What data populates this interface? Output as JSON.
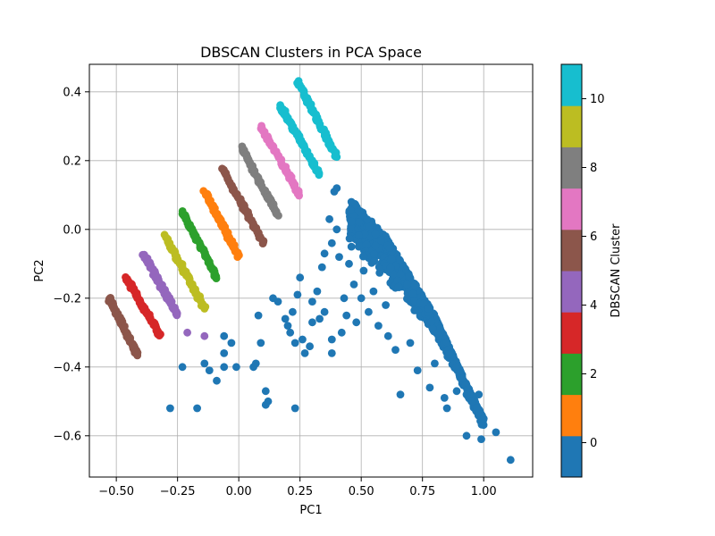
{
  "chart_data": {
    "type": "scatter",
    "title": "DBSCAN Clusters in PCA Space",
    "xlabel": "PC1",
    "ylabel": "PC2",
    "xlim": [
      -0.61,
      1.2
    ],
    "ylim": [
      -0.72,
      0.48
    ],
    "x_ticks": [
      "−0.50",
      "−0.25",
      "0.00",
      "0.25",
      "0.50",
      "0.75",
      "1.00"
    ],
    "y_ticks": [
      "−0.6",
      "−0.4",
      "−0.2",
      "0.0",
      "0.2",
      "0.4"
    ],
    "grid": true,
    "colorbar": {
      "label": "DBSCAN Cluster",
      "range": [
        -1,
        11
      ],
      "tick_values": [
        0,
        2,
        4,
        6,
        8,
        10
      ],
      "tick_labels": [
        "0",
        "2",
        "4",
        "6",
        "8",
        "10"
      ],
      "colors": [
        "#1f77b4",
        "#ff7f0e",
        "#2ca02c",
        "#d62728",
        "#9467bd",
        "#8c564b",
        "#e377c2",
        "#7f7f7f",
        "#bcbd22",
        "#17becf"
      ]
    },
    "cluster_colors": {
      "0": "#1f77b4",
      "1": "#ff7f0e",
      "2": "#2ca02c",
      "3": "#d62728",
      "4": "#9467bd",
      "5": "#8c564b",
      "6": "#8c564b",
      "7": "#e377c2",
      "8": "#7f7f7f",
      "9": "#bcbd22",
      "10": "#17becf",
      "11": "#17becf"
    },
    "bands": [
      {
        "cluster": 6,
        "x": [
          -0.53,
          -0.41
        ],
        "y": [
          -0.2,
          -0.37
        ]
      },
      {
        "cluster": 3,
        "x": [
          -0.46,
          -0.32
        ],
        "y": [
          -0.14,
          -0.31
        ]
      },
      {
        "cluster": 4,
        "x": [
          -0.39,
          -0.25
        ],
        "y": [
          -0.07,
          -0.25
        ]
      },
      {
        "cluster": 9,
        "x": [
          -0.3,
          -0.14
        ],
        "y": [
          -0.02,
          -0.23
        ]
      },
      {
        "cluster": 2,
        "x": [
          -0.23,
          -0.09
        ],
        "y": [
          0.05,
          -0.14
        ]
      },
      {
        "cluster": 1,
        "x": [
          -0.14,
          0.0
        ],
        "y": [
          0.11,
          -0.08
        ]
      },
      {
        "cluster": 6,
        "x": [
          -0.07,
          0.1
        ],
        "y": [
          0.18,
          -0.04
        ]
      },
      {
        "cluster": 8,
        "x": [
          0.01,
          0.16
        ],
        "y": [
          0.24,
          0.04
        ]
      },
      {
        "cluster": 7,
        "x": [
          0.09,
          0.25
        ],
        "y": [
          0.3,
          0.1
        ]
      },
      {
        "cluster": 10,
        "x": [
          0.17,
          0.33
        ],
        "y": [
          0.36,
          0.16
        ]
      },
      {
        "cluster": 11,
        "x": [
          0.24,
          0.4
        ],
        "y": [
          0.43,
          0.21
        ]
      }
    ],
    "cluster0_triangle": {
      "cluster": 0,
      "x": [
        0.45,
        1.12
      ],
      "upper_edge": [
        [
          0.4,
          0.13
        ],
        [
          0.6,
          -0.02
        ],
        [
          0.8,
          -0.25
        ],
        [
          0.93,
          -0.45
        ],
        [
          1.0,
          -0.55
        ]
      ],
      "lower_edge": [
        [
          0.4,
          -0.08
        ],
        [
          0.6,
          -0.22
        ],
        [
          0.8,
          -0.33
        ],
        [
          0.9,
          -0.45
        ],
        [
          1.0,
          -0.6
        ]
      ]
    },
    "points": [
      {
        "cluster": 4,
        "x": -0.21,
        "y": -0.3
      },
      {
        "cluster": 4,
        "x": -0.14,
        "y": -0.31
      },
      {
        "cluster": 0,
        "x": -0.28,
        "y": -0.52
      },
      {
        "cluster": 0,
        "x": -0.17,
        "y": -0.52
      },
      {
        "cluster": 0,
        "x": -0.23,
        "y": -0.4
      },
      {
        "cluster": 0,
        "x": -0.14,
        "y": -0.39
      },
      {
        "cluster": 0,
        "x": -0.12,
        "y": -0.41
      },
      {
        "cluster": 0,
        "x": -0.09,
        "y": -0.44
      },
      {
        "cluster": 0,
        "x": -0.06,
        "y": -0.36
      },
      {
        "cluster": 0,
        "x": -0.03,
        "y": -0.33
      },
      {
        "cluster": 0,
        "x": -0.06,
        "y": -0.31
      },
      {
        "cluster": 0,
        "x": -0.06,
        "y": -0.4
      },
      {
        "cluster": 0,
        "x": -0.01,
        "y": -0.4
      },
      {
        "cluster": 0,
        "x": 0.06,
        "y": -0.4
      },
      {
        "cluster": 0,
        "x": 0.07,
        "y": -0.39
      },
      {
        "cluster": 0,
        "x": 0.09,
        "y": -0.33
      },
      {
        "cluster": 0,
        "x": 0.08,
        "y": -0.25
      },
      {
        "cluster": 0,
        "x": 0.11,
        "y": -0.47
      },
      {
        "cluster": 0,
        "x": 0.11,
        "y": -0.51
      },
      {
        "cluster": 0,
        "x": 0.12,
        "y": -0.5
      },
      {
        "cluster": 0,
        "x": 0.23,
        "y": -0.52
      },
      {
        "cluster": 0,
        "x": 0.14,
        "y": -0.2
      },
      {
        "cluster": 0,
        "x": 0.16,
        "y": -0.21
      },
      {
        "cluster": 0,
        "x": 0.19,
        "y": -0.26
      },
      {
        "cluster": 0,
        "x": 0.2,
        "y": -0.28
      },
      {
        "cluster": 0,
        "x": 0.21,
        "y": -0.3
      },
      {
        "cluster": 0,
        "x": 0.22,
        "y": -0.24
      },
      {
        "cluster": 0,
        "x": 0.23,
        "y": -0.33
      },
      {
        "cluster": 0,
        "x": 0.24,
        "y": -0.19
      },
      {
        "cluster": 0,
        "x": 0.25,
        "y": -0.14
      },
      {
        "cluster": 0,
        "x": 0.26,
        "y": -0.32
      },
      {
        "cluster": 0,
        "x": 0.27,
        "y": -0.36
      },
      {
        "cluster": 0,
        "x": 0.29,
        "y": -0.34
      },
      {
        "cluster": 0,
        "x": 0.3,
        "y": -0.27
      },
      {
        "cluster": 0,
        "x": 0.3,
        "y": -0.21
      },
      {
        "cluster": 0,
        "x": 0.32,
        "y": -0.18
      },
      {
        "cluster": 0,
        "x": 0.33,
        "y": -0.26
      },
      {
        "cluster": 0,
        "x": 0.34,
        "y": -0.11
      },
      {
        "cluster": 0,
        "x": 0.35,
        "y": -0.07
      },
      {
        "cluster": 0,
        "x": 0.35,
        "y": -0.24
      },
      {
        "cluster": 0,
        "x": 0.37,
        "y": 0.03
      },
      {
        "cluster": 0,
        "x": 0.38,
        "y": -0.04
      },
      {
        "cluster": 0,
        "x": 0.38,
        "y": -0.32
      },
      {
        "cluster": 0,
        "x": 0.38,
        "y": -0.36
      },
      {
        "cluster": 0,
        "x": 0.39,
        "y": 0.11
      },
      {
        "cluster": 0,
        "x": 0.4,
        "y": 0.12
      },
      {
        "cluster": 0,
        "x": 0.4,
        "y": 0.0
      },
      {
        "cluster": 0,
        "x": 0.41,
        "y": -0.08
      },
      {
        "cluster": 0,
        "x": 0.42,
        "y": -0.3
      },
      {
        "cluster": 0,
        "x": 0.43,
        "y": -0.2
      },
      {
        "cluster": 0,
        "x": 0.44,
        "y": -0.25
      },
      {
        "cluster": 0,
        "x": 0.45,
        "y": -0.1
      },
      {
        "cluster": 0,
        "x": 0.46,
        "y": -0.05
      },
      {
        "cluster": 0,
        "x": 0.46,
        "y": 0.08
      },
      {
        "cluster": 0,
        "x": 0.47,
        "y": -0.16
      },
      {
        "cluster": 0,
        "x": 0.48,
        "y": -0.27
      },
      {
        "cluster": 0,
        "x": 0.5,
        "y": -0.2
      },
      {
        "cluster": 0,
        "x": 0.51,
        "y": -0.12
      },
      {
        "cluster": 0,
        "x": 0.53,
        "y": -0.24
      },
      {
        "cluster": 0,
        "x": 0.55,
        "y": -0.18
      },
      {
        "cluster": 0,
        "x": 0.57,
        "y": -0.28
      },
      {
        "cluster": 0,
        "x": 0.6,
        "y": -0.22
      },
      {
        "cluster": 0,
        "x": 0.61,
        "y": -0.31
      },
      {
        "cluster": 0,
        "x": 0.64,
        "y": -0.35
      },
      {
        "cluster": 0,
        "x": 0.66,
        "y": -0.48
      },
      {
        "cluster": 0,
        "x": 0.7,
        "y": -0.33
      },
      {
        "cluster": 0,
        "x": 0.73,
        "y": -0.41
      },
      {
        "cluster": 0,
        "x": 0.78,
        "y": -0.46
      },
      {
        "cluster": 0,
        "x": 0.8,
        "y": -0.39
      },
      {
        "cluster": 0,
        "x": 0.84,
        "y": -0.49
      },
      {
        "cluster": 0,
        "x": 0.85,
        "y": -0.52
      },
      {
        "cluster": 0,
        "x": 0.89,
        "y": -0.47
      },
      {
        "cluster": 0,
        "x": 0.93,
        "y": -0.48
      },
      {
        "cluster": 0,
        "x": 0.95,
        "y": -0.5
      },
      {
        "cluster": 0,
        "x": 0.98,
        "y": -0.48
      },
      {
        "cluster": 0,
        "x": 1.0,
        "y": -0.55
      },
      {
        "cluster": 0,
        "x": 0.93,
        "y": -0.6
      },
      {
        "cluster": 0,
        "x": 0.99,
        "y": -0.61
      },
      {
        "cluster": 0,
        "x": 1.05,
        "y": -0.59
      },
      {
        "cluster": 0,
        "x": 1.11,
        "y": -0.67
      }
    ]
  }
}
